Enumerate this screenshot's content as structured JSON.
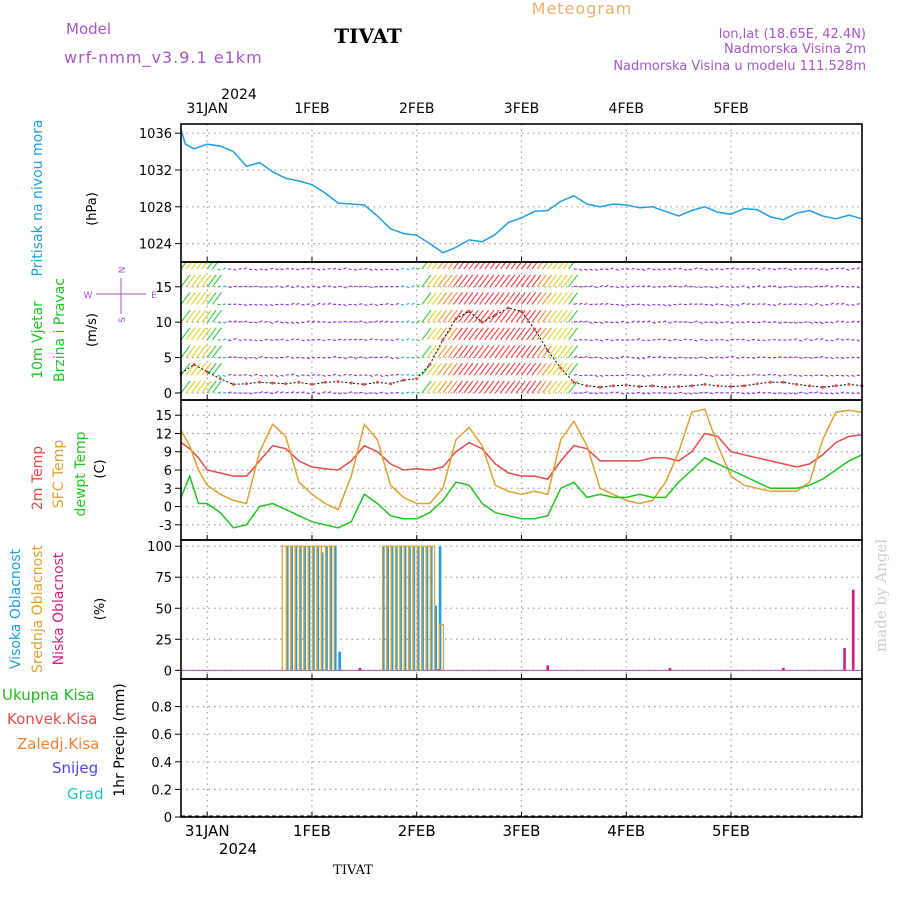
{
  "header": {
    "model_label": "Model",
    "model_name": "wrf-nmm_v3.9.1  e1km",
    "station": "TIVAT",
    "title": "Meteogram",
    "location": "lon,lat (18.65E, 42.4N)",
    "elevation": "Nadmorska Visina 2m",
    "model_elevation": "Nadmorska Visina u modelu 111.528m",
    "footer_station": "TIVAT",
    "credit": "made by Angel"
  },
  "colors": {
    "pressure": "#1f9fe0",
    "temp2m": "#e84a4a",
    "sfc": "#e0a030",
    "dewpt": "#22c422",
    "cloud_high": "#1f9fe0",
    "cloud_mid": "#e0a030",
    "cloud_low": "#d0207f",
    "title_orange": "#e6b36a",
    "purple": "#a855c8",
    "grid": "#a0a0a0",
    "ukupna": "#22b822",
    "konvek": "#e84a4a",
    "zaledj": "#f08030",
    "snijeg": "#4a4ae0",
    "grad": "#20c0c0"
  },
  "time_axis": {
    "top_year": "2024",
    "bottom_year": "2024",
    "labels": [
      "31JAN",
      "1FEB",
      "2FEB",
      "3FEB",
      "4FEB",
      "5FEB"
    ],
    "range_hours": [
      -6,
      150
    ]
  },
  "chart_data": [
    {
      "type": "line",
      "panel": "pressure",
      "ylabel_left": "Pritisak na nivou mora",
      "ylabel_unit": "(hPa)",
      "ylim": [
        1022,
        1037
      ],
      "yticks": [
        "1024",
        "1028",
        "1032",
        "1036"
      ],
      "ytick_values": [
        1024,
        1028,
        1032,
        1036
      ],
      "grid": true,
      "series": [
        {
          "name": "",
          "x": [
            -6,
            -5,
            -3,
            0,
            3,
            6,
            9,
            12,
            15,
            18,
            21,
            24,
            27,
            30,
            33,
            36,
            39,
            42,
            45,
            48,
            51,
            54,
            57,
            60,
            63,
            66,
            69,
            72,
            75,
            78,
            81,
            84,
            87,
            90,
            93,
            96,
            99,
            102,
            105,
            108,
            111,
            114,
            117,
            120,
            123,
            126,
            129,
            132,
            135,
            138,
            141,
            144,
            147,
            150
          ],
          "y": [
            1036.4,
            1034.8,
            1034.3,
            1034.8,
            1034.6,
            1034.0,
            1032.4,
            1032.8,
            1031.8,
            1031.1,
            1030.8,
            1030.4,
            1029.5,
            1028.4,
            1028.3,
            1028.2,
            1027.0,
            1025.6,
            1025.1,
            1024.9,
            1024.0,
            1023.0,
            1023.6,
            1024.4,
            1024.2,
            1025.0,
            1026.3,
            1026.8,
            1027.5,
            1027.6,
            1028.6,
            1029.2,
            1028.3,
            1028.0,
            1028.3,
            1028.2,
            1027.9,
            1028.0,
            1027.5,
            1027.0,
            1027.6,
            1028.0,
            1027.4,
            1027.2,
            1027.8,
            1027.7,
            1026.9,
            1026.6,
            1027.3,
            1027.6,
            1027.0,
            1026.7,
            1027.1,
            1026.7
          ]
        }
      ]
    },
    {
      "type": "scatter",
      "panel": "wind",
      "ylabel_left_1": "10m Vjetar",
      "ylabel_left_2": "Brzina i Pravac",
      "ylabel_unit": "(m/s)",
      "compass": {
        "n": "N",
        "s": "S",
        "e": "E",
        "w": "W"
      },
      "ylim": [
        -1,
        18.5
      ],
      "yticks": [
        "0",
        "5",
        "10",
        "15"
      ],
      "ytick_values": [
        0,
        5,
        10,
        15
      ],
      "grid": true,
      "series": [
        {
          "name": "",
          "x": [
            -6,
            -3,
            0,
            3,
            6,
            9,
            12,
            15,
            18,
            21,
            24,
            27,
            30,
            33,
            36,
            39,
            42,
            45,
            48,
            51,
            54,
            57,
            60,
            63,
            66,
            69,
            72,
            75,
            78,
            81,
            84,
            87,
            90,
            93,
            96,
            99,
            102,
            105,
            108,
            111,
            114,
            117,
            120,
            123,
            126,
            129,
            132,
            135,
            138,
            141,
            144,
            147,
            150
          ],
          "y": [
            2.8,
            4.0,
            3.0,
            2.0,
            1.2,
            1.3,
            1.5,
            1.4,
            1.3,
            1.5,
            1.2,
            1.5,
            1.6,
            1.4,
            1.2,
            1.5,
            1.3,
            1.8,
            2.0,
            4.0,
            7.5,
            10.5,
            11.5,
            10.0,
            11.0,
            12.0,
            11.5,
            9.0,
            6.0,
            3.5,
            1.5,
            1.0,
            0.8,
            1.0,
            1.1,
            0.9,
            1.0,
            0.8,
            0.9,
            1.0,
            1.2,
            1.0,
            0.9,
            1.0,
            1.3,
            1.5,
            1.5,
            1.2,
            1.0,
            0.8,
            1.0,
            1.2,
            1.0
          ]
        }
      ]
    },
    {
      "type": "line",
      "panel": "temperature",
      "ylabel_left_1": "2m Temp",
      "ylabel_left_2": "SFC Temp",
      "ylabel_left_3": "dewpt Temp",
      "ylabel_unit": "(C)",
      "ylim": [
        -5.5,
        17.5
      ],
      "yticks": [
        "-3",
        "0",
        "3",
        "6",
        "9",
        "12",
        "15"
      ],
      "ytick_values": [
        -3,
        0,
        3,
        6,
        9,
        12,
        15
      ],
      "grid": true,
      "series": [
        {
          "name": "2m Temp",
          "x": [
            -6,
            -4,
            -2,
            0,
            3,
            6,
            9,
            12,
            15,
            18,
            21,
            24,
            27,
            30,
            33,
            36,
            39,
            42,
            45,
            48,
            51,
            54,
            57,
            60,
            63,
            66,
            69,
            72,
            75,
            78,
            81,
            84,
            87,
            90,
            93,
            96,
            99,
            102,
            105,
            108,
            111,
            114,
            117,
            120,
            123,
            126,
            129,
            132,
            135,
            138,
            141,
            144,
            147,
            150
          ],
          "y": [
            10.5,
            9.5,
            8.0,
            6.0,
            5.5,
            5.0,
            5.0,
            7.5,
            10.0,
            9.5,
            7.5,
            6.5,
            6.2,
            6.0,
            7.5,
            10.0,
            9.0,
            7.0,
            6.0,
            6.2,
            6.0,
            6.5,
            9.0,
            10.5,
            9.5,
            7.0,
            5.5,
            5.0,
            5.0,
            4.5,
            7.5,
            10.0,
            9.5,
            7.5,
            7.5,
            7.5,
            7.5,
            8.0,
            8.0,
            7.5,
            9.0,
            12.0,
            11.5,
            9.0,
            8.5,
            8.0,
            7.5,
            7.0,
            6.5,
            7.0,
            8.5,
            10.5,
            11.5,
            11.8
          ]
        },
        {
          "name": "SFC Temp",
          "x": [
            -6,
            -4,
            -2,
            0,
            3,
            6,
            9,
            12,
            15,
            18,
            21,
            24,
            27,
            30,
            33,
            36,
            39,
            42,
            45,
            48,
            51,
            54,
            57,
            60,
            63,
            66,
            69,
            72,
            75,
            78,
            81,
            84,
            87,
            90,
            93,
            96,
            99,
            102,
            105,
            108,
            111,
            114,
            117,
            120,
            123,
            126,
            129,
            132,
            135,
            138,
            141,
            144,
            147,
            150
          ],
          "y": [
            12.5,
            10.0,
            6.0,
            3.5,
            2.0,
            1.0,
            0.5,
            9.0,
            13.5,
            11.5,
            4.0,
            2.0,
            0.5,
            -0.5,
            5.0,
            13.5,
            11.0,
            3.5,
            1.5,
            0.5,
            0.5,
            3.0,
            11.0,
            13.0,
            10.0,
            3.5,
            2.5,
            2.0,
            2.5,
            2.0,
            11.0,
            14.0,
            10.0,
            3.0,
            2.0,
            1.0,
            0.5,
            1.0,
            4.0,
            9.0,
            15.5,
            16.0,
            10.0,
            5.0,
            3.5,
            3.0,
            2.5,
            2.5,
            2.5,
            4.0,
            11.0,
            15.5,
            15.8,
            15.5
          ]
        },
        {
          "name": "dewpt Temp",
          "x": [
            -6,
            -4,
            -2,
            0,
            3,
            6,
            9,
            12,
            15,
            18,
            21,
            24,
            27,
            30,
            33,
            36,
            39,
            42,
            45,
            48,
            51,
            54,
            57,
            60,
            63,
            66,
            69,
            72,
            75,
            78,
            81,
            84,
            87,
            90,
            93,
            96,
            99,
            102,
            105,
            108,
            111,
            114,
            117,
            120,
            123,
            126,
            129,
            132,
            135,
            138,
            141,
            144,
            147,
            150
          ],
          "y": [
            1.5,
            5.0,
            0.5,
            0.5,
            -1.0,
            -3.5,
            -3.0,
            0.0,
            0.5,
            -0.5,
            -1.5,
            -2.5,
            -3.0,
            -3.5,
            -2.5,
            2.0,
            0.5,
            -1.5,
            -2.0,
            -2.0,
            -1.0,
            1.0,
            4.0,
            3.5,
            0.5,
            -1.0,
            -1.5,
            -2.0,
            -2.0,
            -1.5,
            3.0,
            4.0,
            1.5,
            2.0,
            1.5,
            1.5,
            2.0,
            1.5,
            1.5,
            4.0,
            6.0,
            8.0,
            7.0,
            6.0,
            5.0,
            4.0,
            3.0,
            3.0,
            3.0,
            3.5,
            4.5,
            6.0,
            7.5,
            8.5
          ]
        }
      ]
    },
    {
      "type": "bar",
      "panel": "cloud",
      "ylabel_left_1": "Visoka Oblacnost",
      "ylabel_left_2": "Srednja Oblacnost",
      "ylabel_left_3": "Niska Oblacnost",
      "ylabel_unit": "(%)",
      "ylim": [
        -7,
        105
      ],
      "yticks": [
        "0",
        "25",
        "50",
        "75",
        "100"
      ],
      "ytick_values": [
        0,
        25,
        50,
        75,
        100
      ],
      "grid": true,
      "series": [
        {
          "name": "Visoka Oblacnost",
          "x": [
            18,
            19,
            20,
            21,
            22,
            23,
            24,
            25,
            26,
            27,
            28,
            29,
            30,
            40,
            41,
            42,
            43,
            44,
            45,
            46,
            47,
            48,
            49,
            50,
            51,
            52,
            53
          ],
          "values": [
            100,
            100,
            100,
            100,
            100,
            100,
            100,
            100,
            95,
            100,
            100,
            100,
            15,
            100,
            100,
            100,
            100,
            100,
            100,
            100,
            100,
            100,
            100,
            100,
            100,
            52,
            100
          ]
        },
        {
          "name": "Srednja Oblacnost",
          "x": [
            18,
            19,
            20,
            21,
            22,
            23,
            24,
            25,
            26,
            27,
            28,
            29,
            41,
            42,
            43,
            44,
            45,
            46,
            47,
            48,
            49,
            50,
            51,
            52,
            54
          ],
          "values": [
            100,
            100,
            100,
            100,
            100,
            100,
            100,
            100,
            100,
            100,
            100,
            100,
            100,
            100,
            100,
            100,
            100,
            100,
            100,
            100,
            100,
            100,
            100,
            100,
            37
          ]
        },
        {
          "name": "Niska Oblacnost",
          "x": [
            35,
            53,
            78,
            106,
            132,
            146,
            148
          ],
          "values": [
            2,
            1,
            4,
            2,
            2,
            18,
            65
          ]
        }
      ]
    },
    {
      "type": "bar",
      "panel": "precipitation",
      "legend": [
        "Ukupna  Kisa",
        "Konvek.Kisa",
        "Zaledj.Kisa",
        "Snijeg",
        "Grad"
      ],
      "ylabel_unit": "1hr Precip (mm)",
      "ylim": [
        0,
        1.0
      ],
      "yticks": [
        "0",
        "0.2",
        "0.4",
        "0.6",
        "0.8"
      ],
      "ytick_values": [
        0,
        0.2,
        0.4,
        0.6,
        0.8
      ],
      "grid": true,
      "series": []
    }
  ]
}
